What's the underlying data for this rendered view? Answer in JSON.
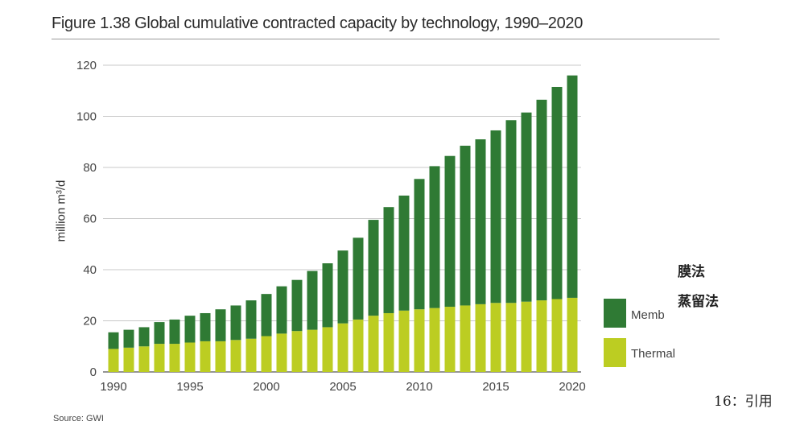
{
  "title": "Figure 1.38 Global cumulative contracted capacity by technology, 1990–2020",
  "source": "Source: GWI",
  "annotations": {
    "membrane_jp": "膜法",
    "thermal_jp": "蒸留法",
    "citation": "16：引用"
  },
  "colors": {
    "membrane": "#2f7a34",
    "thermal": "#bccd22",
    "grid": "#c8c8c8",
    "axis": "#555555"
  },
  "chart_data": {
    "type": "bar",
    "stacked": true,
    "title": "Figure 1.38 Global cumulative contracted capacity by technology, 1990–2020",
    "xlabel": "",
    "ylabel": "million m³/d",
    "ylim": [
      0,
      120
    ],
    "yticks": [
      0,
      20,
      40,
      60,
      80,
      100,
      120
    ],
    "xtick_labels": [
      "1990",
      "1995",
      "2000",
      "2005",
      "2010",
      "2015",
      "2020"
    ],
    "grid": true,
    "legend_position": "right",
    "categories": [
      "1990",
      "1991",
      "1992",
      "1993",
      "1994",
      "1995",
      "1996",
      "1997",
      "1998",
      "1999",
      "2000",
      "2001",
      "2002",
      "2003",
      "2004",
      "2005",
      "2006",
      "2007",
      "2008",
      "2009",
      "2010",
      "2011",
      "2012",
      "2013",
      "2014",
      "2015",
      "2016",
      "2017",
      "2018",
      "2019",
      "2020"
    ],
    "series": [
      {
        "name": "Thermal",
        "color": "#bccd22",
        "values": [
          9,
          9.5,
          10,
          11,
          11,
          11.5,
          12,
          12,
          12.5,
          13,
          14,
          15,
          16,
          16.5,
          17.5,
          19,
          20.5,
          22,
          23,
          24,
          24.5,
          25,
          25.5,
          26,
          26.5,
          27,
          27,
          27.5,
          28,
          28.5,
          29
        ]
      },
      {
        "name": "Membrane",
        "color": "#2f7a34",
        "values": [
          6.5,
          7,
          7.5,
          8.5,
          9.5,
          10.5,
          11,
          12.5,
          13.5,
          15,
          16.5,
          18.5,
          20,
          23,
          25,
          28.5,
          32,
          37.5,
          41.5,
          45,
          51,
          55.5,
          59,
          62.5,
          64.5,
          67.5,
          71.5,
          74,
          78.5,
          83,
          87
        ]
      }
    ],
    "legend": {
      "membrane_label": "Memb",
      "thermal_label": "Thermal"
    }
  }
}
